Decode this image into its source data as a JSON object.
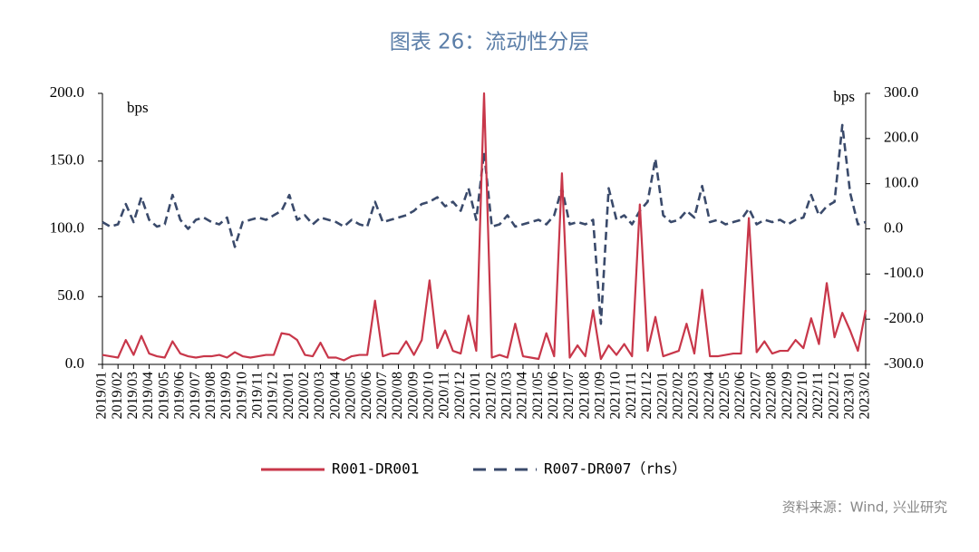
{
  "chart_data": {
    "type": "line",
    "title": "图表 26：流动性分层",
    "y_label": "bps",
    "y2_label": "bps",
    "source": "资料来源：Wind, 兴业研究",
    "categories": [
      "2019/01",
      null,
      "2019/02",
      null,
      "2019/03",
      null,
      "2019/04",
      null,
      "2019/05",
      null,
      "2019/06",
      null,
      "2019/07",
      null,
      "2019/08",
      null,
      "2019/09",
      null,
      "2019/10",
      null,
      "2019/11",
      null,
      "2019/12",
      null,
      "2020/01",
      null,
      "2020/02",
      null,
      "2020/03",
      null,
      "2020/04",
      null,
      "2020/05",
      null,
      "2020/06",
      null,
      "2020/07",
      null,
      "2020/08",
      null,
      "2020/09",
      null,
      "2020/10",
      null,
      "2020/11",
      null,
      "2020/12",
      null,
      "2021/01",
      null,
      "2021/02",
      null,
      "2021/03",
      null,
      "2021/04",
      null,
      "2021/05",
      null,
      "2021/06",
      null,
      "2021/07",
      null,
      "2021/08",
      null,
      "2021/09",
      null,
      "2021/10",
      null,
      "2021/11",
      null,
      "2021/12",
      null,
      "2022/01",
      null,
      "2022/02",
      null,
      "2022/03",
      null,
      "2022/04",
      null,
      "2022/05",
      null,
      "2022/06",
      null,
      "2022/07",
      null,
      "2022/08",
      null,
      "2022/09",
      null,
      "2022/10",
      null,
      "2022/11",
      null,
      "2022/12",
      null,
      "2023/01",
      null,
      "2023/02"
    ],
    "series": [
      {
        "name": "R001-DR001",
        "color": "#c8374a",
        "dashed": false,
        "values": [
          7,
          6,
          5,
          18,
          7,
          21,
          8,
          6,
          5,
          17,
          8,
          6,
          5,
          6,
          6,
          7,
          5,
          9,
          6,
          5,
          6,
          7,
          7,
          23,
          22,
          18,
          7,
          6,
          16,
          5,
          5,
          3,
          6,
          7,
          7,
          47,
          6,
          8,
          8,
          17,
          7,
          18,
          62,
          12,
          25,
          10,
          8,
          36,
          10,
          200,
          5,
          7,
          5,
          30,
          6,
          5,
          4,
          23,
          6,
          141,
          5,
          14,
          6,
          40,
          4,
          14,
          7,
          15,
          6,
          118,
          10,
          35,
          6,
          8,
          10,
          30,
          8,
          55,
          6,
          6,
          7,
          8,
          8,
          108,
          9,
          17,
          8,
          10,
          10,
          18,
          12,
          34,
          15,
          60,
          20,
          38,
          25,
          10,
          40
        ]
      },
      {
        "name": "R007-DR007（rhs）",
        "color": "#3a4a6b",
        "dashed": true,
        "axis": "y2",
        "values": [
          15,
          5,
          10,
          55,
          15,
          70,
          20,
          5,
          10,
          75,
          20,
          0,
          20,
          25,
          15,
          10,
          25,
          -40,
          15,
          20,
          25,
          20,
          30,
          40,
          75,
          20,
          30,
          10,
          25,
          20,
          15,
          5,
          20,
          10,
          5,
          60,
          15,
          20,
          25,
          30,
          40,
          55,
          60,
          70,
          50,
          60,
          40,
          90,
          20,
          170,
          5,
          10,
          30,
          5,
          10,
          15,
          20,
          10,
          30,
          90,
          10,
          15,
          10,
          20,
          -210,
          90,
          20,
          30,
          10,
          40,
          60,
          155,
          30,
          15,
          20,
          40,
          25,
          95,
          15,
          20,
          10,
          15,
          20,
          45,
          10,
          20,
          15,
          20,
          10,
          20,
          25,
          75,
          30,
          50,
          60,
          230,
          80,
          10,
          15
        ]
      }
    ],
    "ylim": [
      0,
      200
    ],
    "yticks": [
      {
        "value": 0,
        "label": "0.0"
      },
      {
        "value": 50,
        "label": "50.0"
      },
      {
        "value": 100,
        "label": "100.0"
      },
      {
        "value": 150,
        "label": "150.0"
      },
      {
        "value": 200,
        "label": "200.0"
      }
    ],
    "y2lim": [
      -300,
      300
    ],
    "y2ticks": [
      {
        "value": -300,
        "label": "-300.0"
      },
      {
        "value": -200,
        "label": "-200.0"
      },
      {
        "value": -100,
        "label": "-100.0"
      },
      {
        "value": 0,
        "label": "0.0"
      },
      {
        "value": 100,
        "label": "100.0"
      },
      {
        "value": 200,
        "label": "200.0"
      },
      {
        "value": 300,
        "label": "300.0"
      }
    ]
  }
}
